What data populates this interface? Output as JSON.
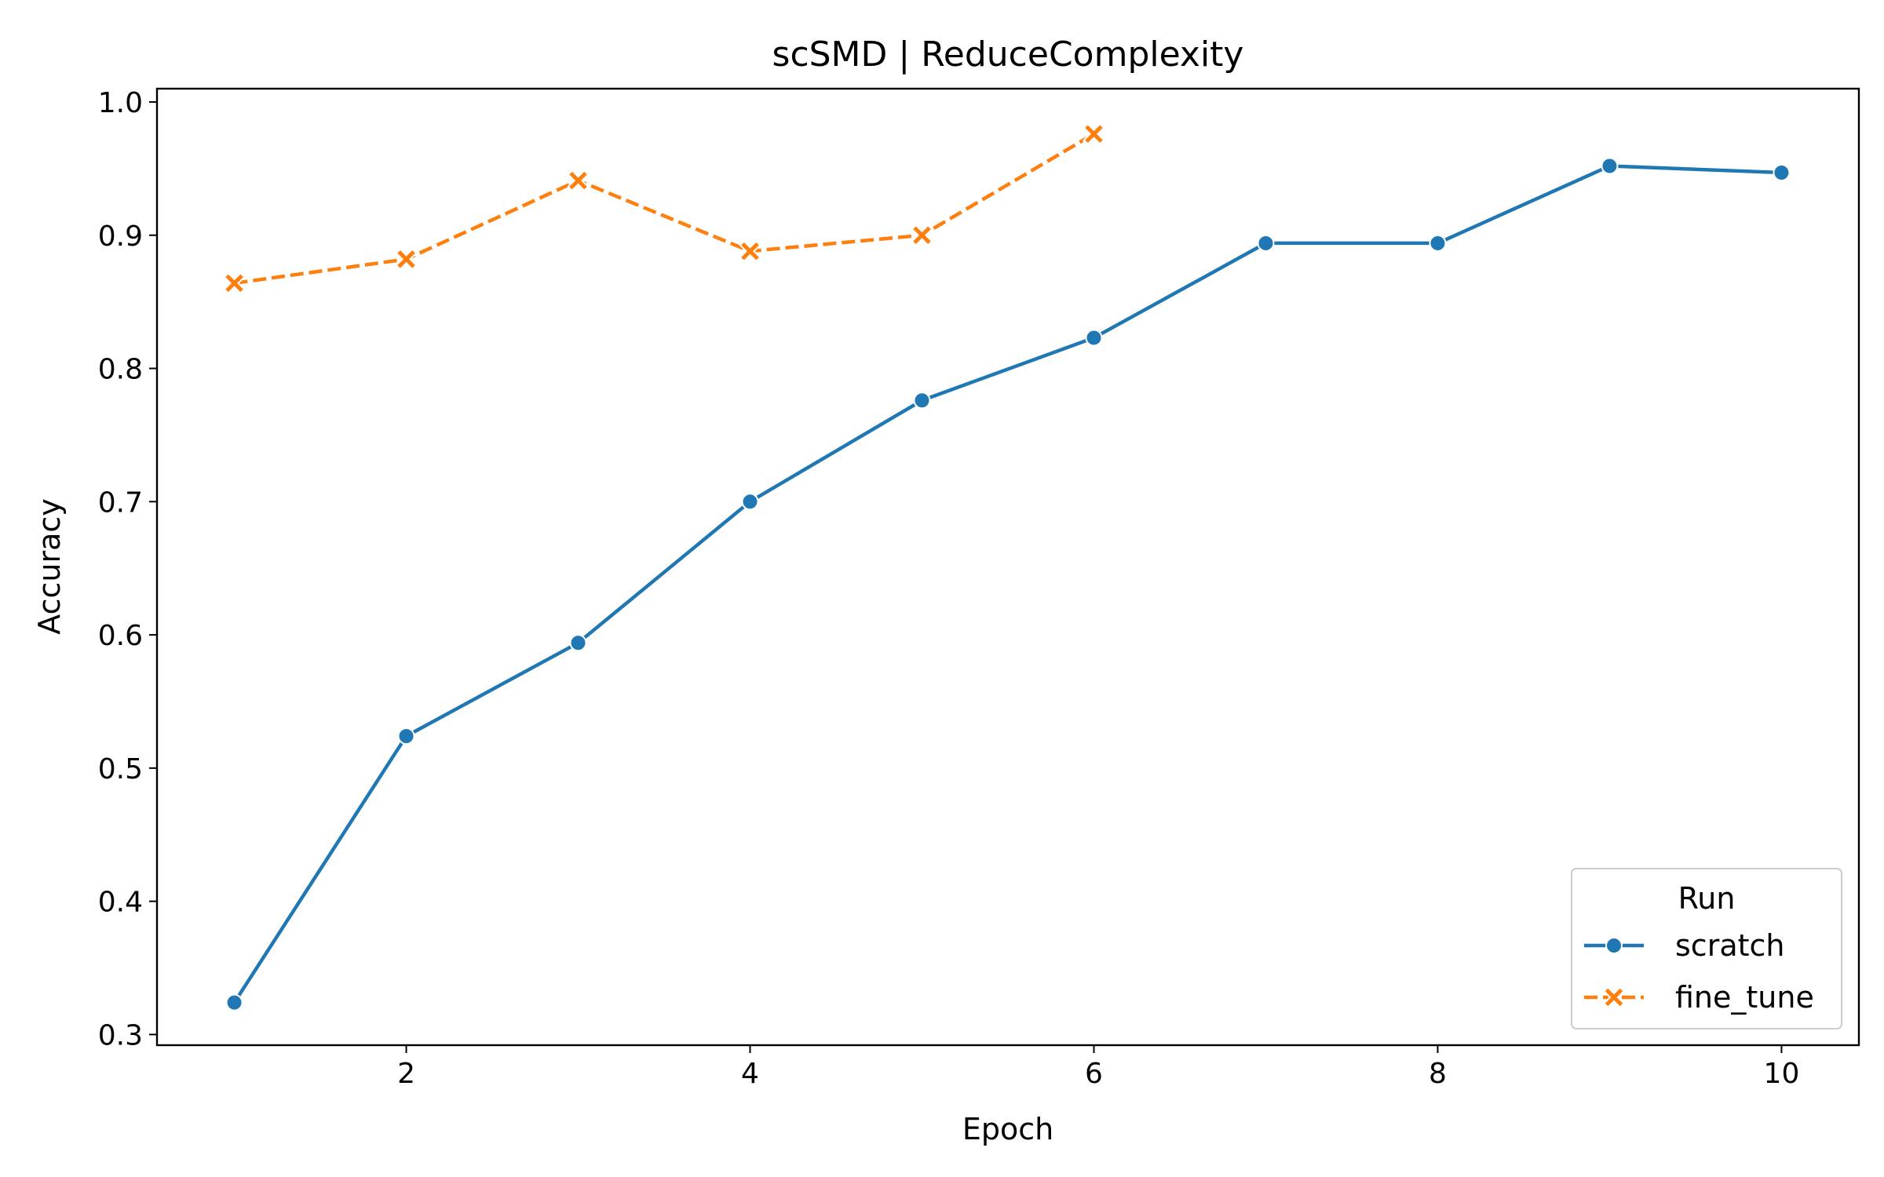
{
  "chart_data": {
    "type": "line",
    "title": "scSMD | ReduceComplexity",
    "xlabel": "Epoch",
    "ylabel": "Accuracy",
    "xlim": [
      0.55,
      10.45
    ],
    "ylim": [
      0.292,
      1.01
    ],
    "xticks": [
      2,
      4,
      6,
      8,
      10
    ],
    "yticks": [
      0.3,
      0.4,
      0.5,
      0.6,
      0.7,
      0.8,
      0.9,
      1.0
    ],
    "grid": false,
    "legend": {
      "title": "Run",
      "position": "lower-right"
    },
    "series": [
      {
        "name": "scratch",
        "color": "#1f77b4",
        "marker": "circle",
        "line_style": "solid",
        "x": [
          1,
          2,
          3,
          4,
          5,
          6,
          7,
          8,
          9,
          10
        ],
        "y": [
          0.324,
          0.524,
          0.594,
          0.7,
          0.776,
          0.823,
          0.894,
          0.894,
          0.952,
          0.947
        ]
      },
      {
        "name": "fine_tune",
        "color": "#ff7f0e",
        "marker": "x",
        "line_style": "dashed",
        "x": [
          1,
          2,
          3,
          4,
          5,
          6
        ],
        "y": [
          0.864,
          0.882,
          0.941,
          0.888,
          0.9,
          0.976
        ]
      }
    ]
  }
}
